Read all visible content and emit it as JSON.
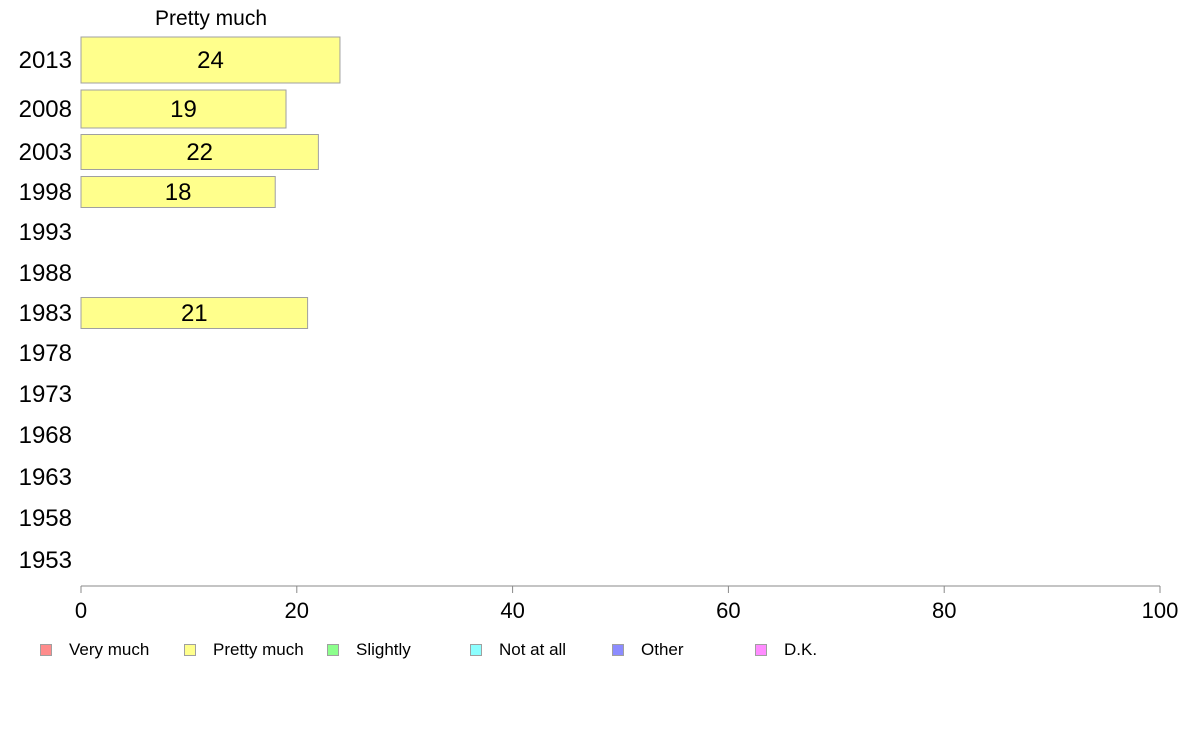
{
  "chart_data": {
    "type": "bar",
    "orientation": "horizontal",
    "stacked": true,
    "title": "Pretty much",
    "categories": [
      "2013",
      "2008",
      "2003",
      "1998",
      "1993",
      "1988",
      "1983",
      "1978",
      "1973",
      "1968",
      "1963",
      "1958",
      "1953"
    ],
    "series": [
      {
        "name": "Very much",
        "color": "#ff8c8c",
        "values": [
          null,
          null,
          null,
          null,
          null,
          null,
          null,
          null,
          null,
          null,
          null,
          null,
          null
        ]
      },
      {
        "name": "Pretty much",
        "color": "#ffff8c",
        "values": [
          24,
          19,
          22,
          18,
          null,
          null,
          21,
          null,
          null,
          null,
          null,
          null,
          null
        ]
      },
      {
        "name": "Slightly",
        "color": "#8cff8c",
        "values": [
          null,
          null,
          null,
          null,
          null,
          null,
          null,
          null,
          null,
          null,
          null,
          null,
          null
        ]
      },
      {
        "name": "Not at all",
        "color": "#8cffff",
        "values": [
          null,
          null,
          null,
          null,
          null,
          null,
          null,
          null,
          null,
          null,
          null,
          null,
          null
        ]
      },
      {
        "name": "Other",
        "color": "#8c8cff",
        "values": [
          null,
          null,
          null,
          null,
          null,
          null,
          null,
          null,
          null,
          null,
          null,
          null,
          null
        ]
      },
      {
        "name": "D.K.",
        "color": "#ff8cff",
        "values": [
          null,
          null,
          null,
          null,
          null,
          null,
          null,
          null,
          null,
          null,
          null,
          null,
          null
        ]
      }
    ],
    "xlim": [
      0,
      100
    ],
    "xticks": [
      "0",
      "20",
      "40",
      "60",
      "80",
      "100"
    ],
    "xlabel": "",
    "ylabel": "",
    "grid": false,
    "legend_position": "bottom"
  }
}
